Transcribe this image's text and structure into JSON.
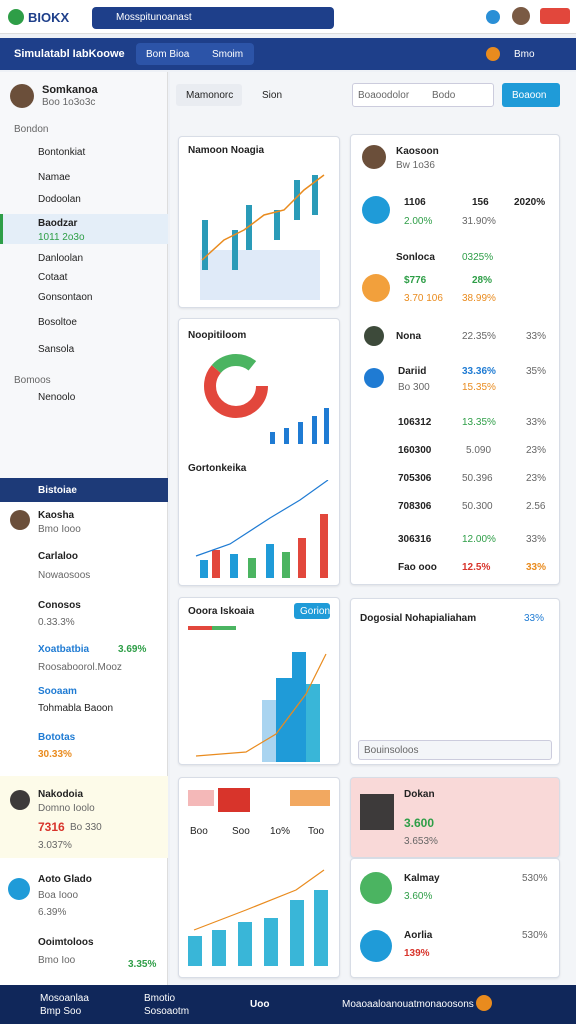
{
  "header": {
    "logo": "BIOKX",
    "search": "Mosspitunoanast"
  },
  "nav": {
    "title": "Simulatabl IabKoowe",
    "tabs": [
      "Bom Bioa",
      "Smoim"
    ],
    "user": "Bmo"
  },
  "sidebar": {
    "profile_name": "Somkanoa",
    "profile_sub": "Boo 1o3o3c",
    "section": "Bondon",
    "items": [
      "Bontonkiat",
      "Namae",
      "Dodoolan",
      "Baodzar",
      "Danloolan",
      "Cotaat",
      "Gonsontaon",
      "Bosoltoe",
      "Sansola"
    ],
    "active_sub": "1011 2o3o",
    "section2": "Bomoos",
    "item2": "Nenoolo"
  },
  "panel": {
    "title": "Bistoiae",
    "rows": [
      [
        "Kaosha",
        "Bmo Iooo"
      ],
      [
        "Carlaloo",
        "Nowaosoos"
      ],
      [
        "Conosos",
        "0.33.3%"
      ],
      [
        "Xoatbatbia",
        "3.69%",
        "Roosaboorol.Mooz"
      ],
      [
        "Sooaam",
        "Tohmabla Baoon"
      ],
      [
        "Bototas",
        "30.33%"
      ],
      [
        "Nakodoia",
        "Domno Ioolo",
        "7316",
        "Bo 330",
        "3.037%"
      ],
      [
        "Aoto Glado",
        "Boa Iooo",
        "6.39%"
      ],
      [
        "Ooimtoloos",
        "Bmo Ioo",
        "3.35%"
      ]
    ]
  },
  "toolbar": {
    "tabs": [
      "Mamonorc",
      "Sion"
    ],
    "input": "Boaoodolor",
    "select": "Bodo",
    "button": "Boaoon"
  },
  "cards": {
    "c1": "Namoon Noagia",
    "c2": "Noopitiloom",
    "c3": "Gortonkeika",
    "c4": "Ooora Iskoaia",
    "c4_button": "Gorion",
    "c5": [
      "Boo",
      "Soo",
      "1o%",
      "Too"
    ]
  },
  "list": {
    "name": "Kaosoon",
    "sub": "Bw 1o36",
    "rows": [
      [
        "1106",
        "156",
        "2020%",
        "2.00%",
        "31.90%"
      ],
      [
        "Sonloca",
        "0325%"
      ],
      [
        "$776",
        "28%",
        "3.70 106",
        "38.99%"
      ],
      [
        "Nona",
        "22.35%",
        "33%"
      ],
      [
        "Dariid",
        "33.36%",
        "35%",
        "Bo 300",
        "15.35%"
      ],
      [
        "106312",
        "13.35%",
        "33%"
      ],
      [
        "160300",
        "5.090",
        "23%"
      ],
      [
        "705306",
        "50.396",
        "23%"
      ],
      [
        "708306",
        "50.300",
        "2.56"
      ],
      [
        "306316",
        "12.00%",
        "33%"
      ],
      [
        "Fao ooo",
        "12.5%",
        "33%"
      ]
    ]
  },
  "search_card": {
    "title": "Dogosial Nohapialiaham",
    "badge": "33%",
    "input": "Bouinsoloos"
  },
  "people": [
    [
      "Dokan",
      "3.600",
      "3.653%"
    ],
    [
      "Kalmay",
      "530%",
      "3.60%"
    ],
    [
      "Aorlia",
      "530%",
      "139%"
    ]
  ],
  "bottom_bar": [
    "Mosoanlaa",
    "Bmp Soo",
    "Bmotio",
    "Sosoaotm",
    "Uoo",
    "Moaoaaloanouatmonaoosons"
  ]
}
